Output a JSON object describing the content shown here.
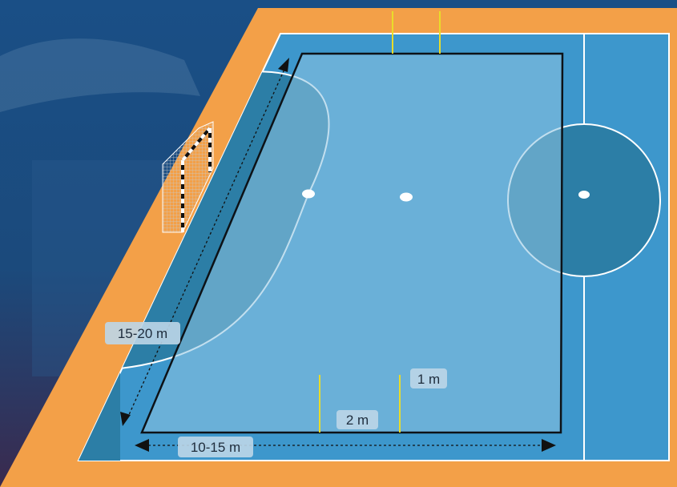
{
  "diagram": {
    "labels": {
      "diagonal_length": "15-20 m",
      "bottom_width": "10-15 m",
      "gap_marker": "2 m",
      "marker_height": "1 m"
    },
    "colors": {
      "background": "#143f6e",
      "border_orange": "#f3a048",
      "court_blue": "#3d97cc",
      "zone_light": "#6eb5da",
      "zone_dark": "#2c7ea6",
      "line_white": "#ffffff",
      "pole_yellow": "#e9dc2a",
      "label_bg": "#bcd6e8"
    },
    "icons": [
      "goal-net-icon",
      "arrow-left-icon",
      "arrow-right-icon",
      "arrow-up-icon",
      "arrow-down-icon"
    ]
  }
}
